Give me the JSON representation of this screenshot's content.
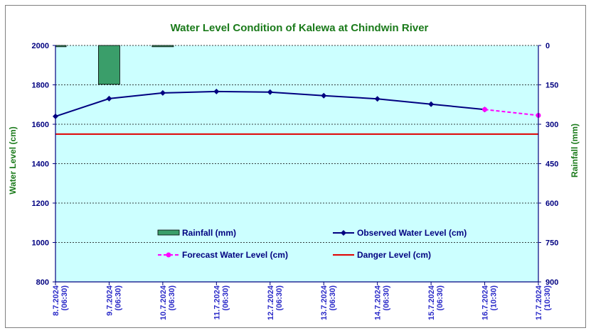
{
  "chart_data": {
    "type": "line",
    "title": "Water Level Condition of Kalewa at Chindwin River",
    "ylabel": "Water Level (cm)",
    "y2label": "Rainfall (mm)",
    "ylim": [
      800,
      2000
    ],
    "y2lim": [
      0,
      900
    ],
    "y2_inverted": true,
    "y_ticks": [
      "2000",
      "1800",
      "1600",
      "1400",
      "1200",
      "1000",
      "800"
    ],
    "y2_ticks": [
      "0",
      "150",
      "300",
      "450",
      "600",
      "750",
      "900"
    ],
    "categories": [
      [
        "8.7.2024",
        "(06:30)"
      ],
      [
        "9.7.2024",
        "(06:30)"
      ],
      [
        "10.7.2024",
        "(06:30)"
      ],
      [
        "11.7.2024",
        "(06:30)"
      ],
      [
        "12.7.2024",
        "(06:30)"
      ],
      [
        "13.7.2024",
        "(06:30)"
      ],
      [
        "14.7.2024",
        "(06:30)"
      ],
      [
        "15.7.2024",
        "(06:30)"
      ],
      [
        "16.7.2024",
        "(10:30)"
      ],
      [
        "17.7.2024",
        "(10:30)"
      ]
    ],
    "series": [
      {
        "name": "Rainfall (mm)",
        "kind": "bar",
        "axis": "right",
        "color": "#3a9e6a",
        "values": [
          5,
          148,
          5,
          null,
          null,
          null,
          null,
          null,
          null,
          null
        ]
      },
      {
        "name": "Observed Water Level (cm)",
        "kind": "line",
        "axis": "left",
        "color": "#000080",
        "marker": "diamond",
        "values": [
          1640,
          1730,
          1759,
          1766,
          1763,
          1745,
          1729,
          1702,
          1675,
          null
        ]
      },
      {
        "name": "Forecast Water Level (cm)",
        "kind": "line",
        "axis": "left",
        "color": "#ff00ff",
        "style": "dashed",
        "marker": "circle",
        "values": [
          null,
          null,
          null,
          null,
          null,
          null,
          null,
          null,
          1675,
          1645
        ]
      },
      {
        "name": "Danger Level (cm)",
        "kind": "line",
        "axis": "left",
        "color": "#e00000",
        "values": [
          1550,
          1550,
          1550,
          1550,
          1550,
          1550,
          1550,
          1550,
          1550,
          1550
        ]
      }
    ],
    "grid": true,
    "plot_background": "#ccffff",
    "legend_position": "inside-bottom"
  }
}
